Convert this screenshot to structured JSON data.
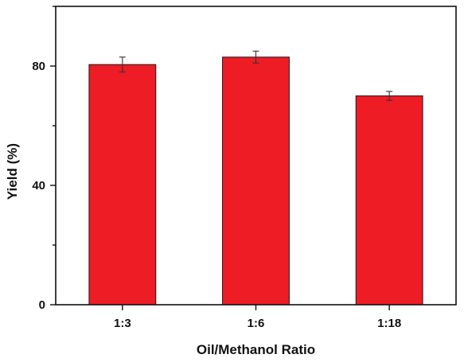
{
  "chart_data": {
    "type": "bar",
    "categories": [
      "1:3",
      "1:6",
      "1:18"
    ],
    "values": [
      80.5,
      83,
      70
    ],
    "errors": [
      2.5,
      2,
      1.5
    ],
    "title": "",
    "xlabel": "Oil/Methanol Ratio",
    "ylabel": "Yield (%)",
    "ylim": [
      0,
      100
    ],
    "yticks": [
      0,
      40,
      80
    ],
    "ytick_labels": [
      "0",
      "40",
      "80"
    ],
    "grid": false,
    "legend": "none",
    "bar_color": "#ee1c25"
  }
}
